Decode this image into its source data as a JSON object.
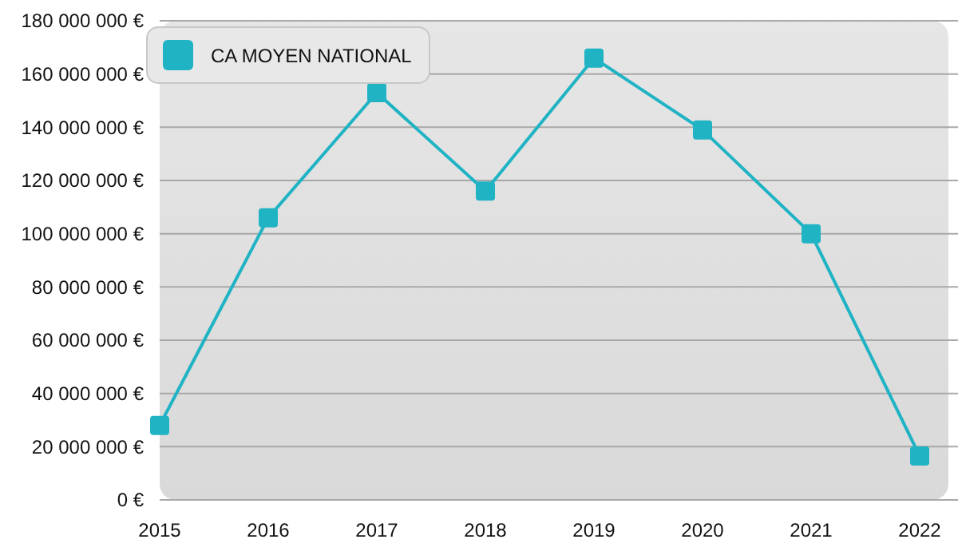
{
  "chart_data": {
    "type": "line",
    "categories": [
      "2015",
      "2016",
      "2017",
      "2018",
      "2019",
      "2020",
      "2021",
      "2022"
    ],
    "series": [
      {
        "name": "CA MOYEN NATIONAL",
        "color": "#1fb3c4",
        "values": [
          28000000,
          106000000,
          153000000,
          116000000,
          166000000,
          139000000,
          100000000,
          16500000
        ]
      }
    ],
    "ylim": [
      0,
      180000000
    ],
    "yticks": [
      {
        "value": 0,
        "label": "0 €"
      },
      {
        "value": 20000000,
        "label": "20 000 000 €"
      },
      {
        "value": 40000000,
        "label": "40 000 000 €"
      },
      {
        "value": 60000000,
        "label": "60 000 000 €"
      },
      {
        "value": 80000000,
        "label": "80 000 000 €"
      },
      {
        "value": 100000000,
        "label": "100 000 000 €"
      },
      {
        "value": 120000000,
        "label": "120 000 000 €"
      },
      {
        "value": 140000000,
        "label": "140 000 000 €"
      },
      {
        "value": 160000000,
        "label": "160 000 000 €"
      },
      {
        "value": 180000000,
        "label": "180 000 000 €"
      }
    ],
    "grid": "y",
    "legend": "top left",
    "marker": "square",
    "line_style": "solid"
  }
}
